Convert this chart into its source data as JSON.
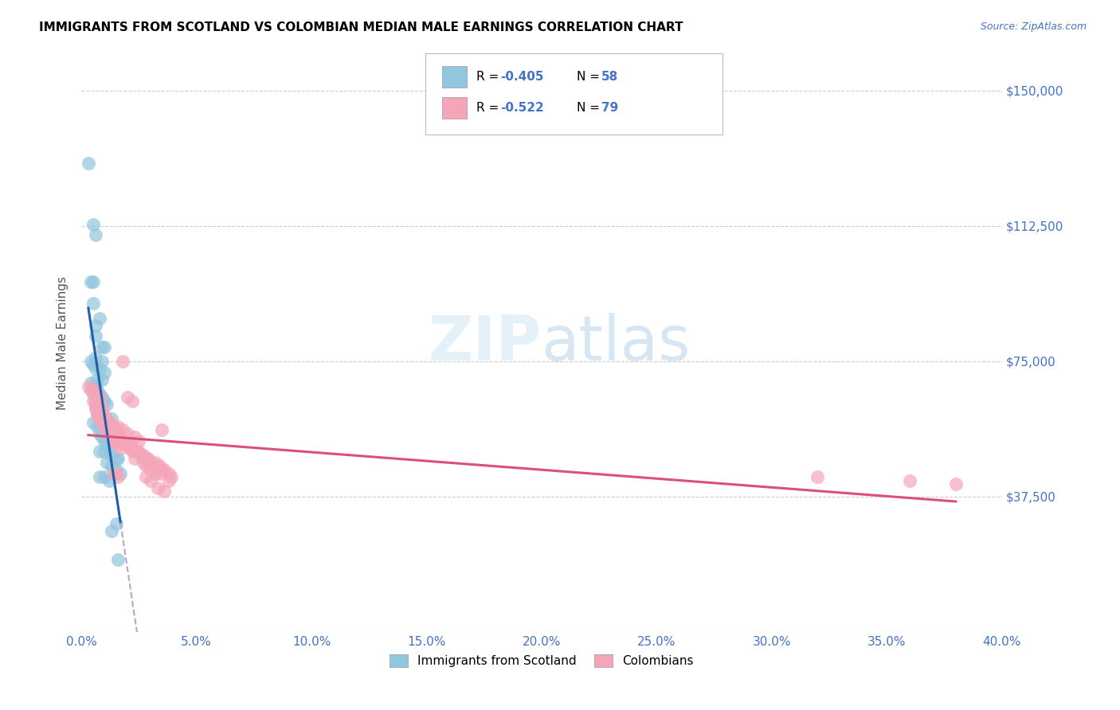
{
  "title": "IMMIGRANTS FROM SCOTLAND VS COLOMBIAN MEDIAN MALE EARNINGS CORRELATION CHART",
  "source": "Source: ZipAtlas.com",
  "ylabel": "Median Male Earnings",
  "yticks": [
    0,
    37500,
    75000,
    112500,
    150000
  ],
  "ytick_labels": [
    "",
    "$37,500",
    "$75,000",
    "$112,500",
    "$150,000"
  ],
  "xlim": [
    0.0,
    0.4
  ],
  "ylim": [
    0,
    160000
  ],
  "legend_label1": "Immigrants from Scotland",
  "legend_label2": "Colombians",
  "blue_color": "#92c5de",
  "pink_color": "#f4a6b8",
  "blue_line_color": "#1f5fa6",
  "pink_line_color": "#d9517a",
  "text_color": "#4472c4",
  "grid_color": "#cccccc",
  "blue_scatter": [
    [
      0.003,
      130000
    ],
    [
      0.005,
      113000
    ],
    [
      0.006,
      110000
    ],
    [
      0.004,
      97000
    ],
    [
      0.005,
      97000
    ],
    [
      0.005,
      91000
    ],
    [
      0.008,
      87000
    ],
    [
      0.006,
      85000
    ],
    [
      0.006,
      82000
    ],
    [
      0.009,
      79000
    ],
    [
      0.01,
      79000
    ],
    [
      0.006,
      76000
    ],
    [
      0.004,
      75000
    ],
    [
      0.009,
      75000
    ],
    [
      0.005,
      74000
    ],
    [
      0.006,
      73000
    ],
    [
      0.008,
      73000
    ],
    [
      0.01,
      72000
    ],
    [
      0.007,
      70000
    ],
    [
      0.009,
      70000
    ],
    [
      0.004,
      69000
    ],
    [
      0.006,
      68000
    ],
    [
      0.007,
      67000
    ],
    [
      0.005,
      66000
    ],
    [
      0.008,
      66000
    ],
    [
      0.009,
      65000
    ],
    [
      0.01,
      64000
    ],
    [
      0.011,
      63000
    ],
    [
      0.006,
      62000
    ],
    [
      0.007,
      61000
    ],
    [
      0.008,
      60000
    ],
    [
      0.009,
      60000
    ],
    [
      0.011,
      59000
    ],
    [
      0.013,
      59000
    ],
    [
      0.005,
      58000
    ],
    [
      0.007,
      57000
    ],
    [
      0.01,
      57000
    ],
    [
      0.012,
      56000
    ],
    [
      0.008,
      55000
    ],
    [
      0.009,
      54000
    ],
    [
      0.01,
      53000
    ],
    [
      0.014,
      53000
    ],
    [
      0.011,
      52000
    ],
    [
      0.012,
      51000
    ],
    [
      0.008,
      50000
    ],
    [
      0.01,
      50000
    ],
    [
      0.013,
      49000
    ],
    [
      0.015,
      48000
    ],
    [
      0.016,
      48000
    ],
    [
      0.011,
      47000
    ],
    [
      0.013,
      46000
    ],
    [
      0.015,
      45000
    ],
    [
      0.017,
      44000
    ],
    [
      0.008,
      43000
    ],
    [
      0.01,
      43000
    ],
    [
      0.012,
      42000
    ],
    [
      0.015,
      30000
    ],
    [
      0.013,
      28000
    ],
    [
      0.016,
      20000
    ]
  ],
  "pink_scatter": [
    [
      0.003,
      68000
    ],
    [
      0.004,
      67000
    ],
    [
      0.005,
      67000
    ],
    [
      0.006,
      66000
    ],
    [
      0.007,
      65000
    ],
    [
      0.008,
      65000
    ],
    [
      0.005,
      64000
    ],
    [
      0.006,
      64000
    ],
    [
      0.007,
      63000
    ],
    [
      0.008,
      63000
    ],
    [
      0.009,
      62000
    ],
    [
      0.006,
      62000
    ],
    [
      0.007,
      61000
    ],
    [
      0.008,
      61000
    ],
    [
      0.009,
      61000
    ],
    [
      0.01,
      60000
    ],
    [
      0.007,
      60000
    ],
    [
      0.011,
      59000
    ],
    [
      0.008,
      59000
    ],
    [
      0.012,
      58000
    ],
    [
      0.009,
      58000
    ],
    [
      0.013,
      57000
    ],
    [
      0.01,
      57000
    ],
    [
      0.014,
      57000
    ],
    [
      0.011,
      56000
    ],
    [
      0.015,
      56000
    ],
    [
      0.012,
      55000
    ],
    [
      0.016,
      55000
    ],
    [
      0.013,
      54000
    ],
    [
      0.017,
      54000
    ],
    [
      0.014,
      53000
    ],
    [
      0.018,
      53000
    ],
    [
      0.015,
      53000
    ],
    [
      0.019,
      52000
    ],
    [
      0.016,
      52000
    ],
    [
      0.02,
      52000
    ],
    [
      0.017,
      51000
    ],
    [
      0.021,
      51000
    ],
    [
      0.022,
      51000
    ],
    [
      0.018,
      75000
    ],
    [
      0.02,
      65000
    ],
    [
      0.022,
      64000
    ],
    [
      0.024,
      50000
    ],
    [
      0.025,
      50000
    ],
    [
      0.026,
      49000
    ],
    [
      0.027,
      49000
    ],
    [
      0.028,
      48000
    ],
    [
      0.029,
      48000
    ],
    [
      0.03,
      47000
    ],
    [
      0.032,
      47000
    ],
    [
      0.033,
      46000
    ],
    [
      0.034,
      46000
    ],
    [
      0.035,
      45000
    ],
    [
      0.036,
      45000
    ],
    [
      0.038,
      44000
    ],
    [
      0.039,
      43000
    ],
    [
      0.022,
      50000
    ],
    [
      0.024,
      50000
    ],
    [
      0.026,
      49000
    ],
    [
      0.028,
      46000
    ],
    [
      0.03,
      45000
    ],
    [
      0.032,
      44000
    ],
    [
      0.034,
      44000
    ],
    [
      0.016,
      57000
    ],
    [
      0.018,
      56000
    ],
    [
      0.02,
      55000
    ],
    [
      0.023,
      54000
    ],
    [
      0.025,
      53000
    ],
    [
      0.014,
      44000
    ],
    [
      0.015,
      44000
    ],
    [
      0.016,
      43000
    ],
    [
      0.035,
      56000
    ],
    [
      0.033,
      40000
    ],
    [
      0.036,
      39000
    ],
    [
      0.028,
      43000
    ],
    [
      0.03,
      42000
    ],
    [
      0.038,
      42000
    ],
    [
      0.023,
      48000
    ],
    [
      0.027,
      47000
    ],
    [
      0.32,
      43000
    ],
    [
      0.36,
      42000
    ],
    [
      0.38,
      41000
    ]
  ]
}
